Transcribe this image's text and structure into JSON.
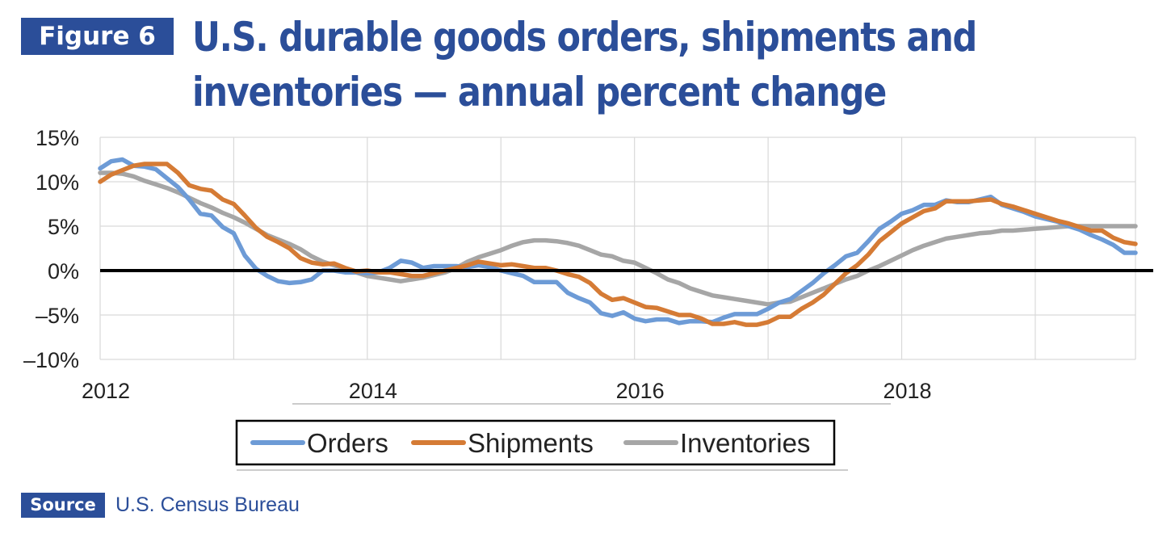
{
  "figure": {
    "badge": "Figure 6",
    "title_line1": "U.S. durable goods orders, shipments and",
    "title_line2": "inventories — annual percent change"
  },
  "source": {
    "badge": "Source",
    "text": "U.S. Census Bureau"
  },
  "colors": {
    "brand": "#2b4e99",
    "orders": "#6d9bd6",
    "shipments": "#d57b35",
    "inventories": "#a6a6a6"
  },
  "chart_data": {
    "type": "line",
    "title": "U.S. durable goods orders, shipments and inventories — annual percent change",
    "xlabel": "",
    "ylabel": "",
    "x_ticks": [
      "2012",
      "2014",
      "2016",
      "2018"
    ],
    "y_ticks": [
      "15%",
      "10%",
      "5%",
      "0%",
      "–5%",
      "–10%"
    ],
    "ylim": [
      -10,
      15
    ],
    "xlim": [
      2012.0,
      2019.75
    ],
    "grid": "vertical gridlines at each year; horizontal gridlines at each 5%",
    "legend_position": "bottom",
    "series": [
      {
        "name": "Orders",
        "points": [
          [
            2012.0,
            11.5
          ],
          [
            2012.083,
            12.3
          ],
          [
            2012.167,
            12.5
          ],
          [
            2012.25,
            11.8
          ],
          [
            2012.333,
            11.7
          ],
          [
            2012.417,
            11.4
          ],
          [
            2012.5,
            10.4
          ],
          [
            2012.583,
            9.4
          ],
          [
            2012.667,
            8.0
          ],
          [
            2012.75,
            6.4
          ],
          [
            2012.833,
            6.2
          ],
          [
            2012.917,
            4.9
          ],
          [
            2013.0,
            4.2
          ],
          [
            2013.083,
            1.7
          ],
          [
            2013.167,
            0.2
          ],
          [
            2013.25,
            -0.6
          ],
          [
            2013.333,
            -1.2
          ],
          [
            2013.417,
            -1.4
          ],
          [
            2013.5,
            -1.3
          ],
          [
            2013.583,
            -1.0
          ],
          [
            2013.667,
            0.0
          ],
          [
            2013.75,
            0.0
          ],
          [
            2013.833,
            -0.2
          ],
          [
            2013.917,
            -0.2
          ],
          [
            2014.0,
            -0.3
          ],
          [
            2014.083,
            -0.2
          ],
          [
            2014.167,
            0.3
          ],
          [
            2014.25,
            1.1
          ],
          [
            2014.333,
            0.9
          ],
          [
            2014.417,
            0.3
          ],
          [
            2014.5,
            0.5
          ],
          [
            2014.583,
            0.5
          ],
          [
            2014.667,
            0.5
          ],
          [
            2014.75,
            0.4
          ],
          [
            2014.833,
            0.6
          ],
          [
            2014.917,
            0.4
          ],
          [
            2015.0,
            0.0
          ],
          [
            2015.083,
            -0.3
          ],
          [
            2015.167,
            -0.6
          ],
          [
            2015.25,
            -1.3
          ],
          [
            2015.333,
            -1.3
          ],
          [
            2015.417,
            -1.3
          ],
          [
            2015.5,
            -2.5
          ],
          [
            2015.583,
            -3.1
          ],
          [
            2015.667,
            -3.6
          ],
          [
            2015.75,
            -4.8
          ],
          [
            2015.833,
            -5.1
          ],
          [
            2015.917,
            -4.7
          ],
          [
            2016.0,
            -5.4
          ],
          [
            2016.083,
            -5.7
          ],
          [
            2016.167,
            -5.5
          ],
          [
            2016.25,
            -5.5
          ],
          [
            2016.333,
            -5.9
          ],
          [
            2016.417,
            -5.7
          ],
          [
            2016.5,
            -5.7
          ],
          [
            2016.583,
            -5.8
          ],
          [
            2016.667,
            -5.3
          ],
          [
            2016.75,
            -4.9
          ],
          [
            2016.833,
            -4.9
          ],
          [
            2016.917,
            -4.9
          ],
          [
            2017.0,
            -4.3
          ],
          [
            2017.083,
            -3.6
          ],
          [
            2017.167,
            -3.2
          ],
          [
            2017.25,
            -2.3
          ],
          [
            2017.333,
            -1.4
          ],
          [
            2017.417,
            -0.3
          ],
          [
            2017.5,
            0.6
          ],
          [
            2017.583,
            1.6
          ],
          [
            2017.667,
            2.0
          ],
          [
            2017.75,
            3.3
          ],
          [
            2017.833,
            4.7
          ],
          [
            2017.917,
            5.5
          ],
          [
            2018.0,
            6.4
          ],
          [
            2018.083,
            6.8
          ],
          [
            2018.167,
            7.4
          ],
          [
            2018.25,
            7.4
          ],
          [
            2018.333,
            7.9
          ],
          [
            2018.417,
            7.7
          ],
          [
            2018.5,
            7.7
          ],
          [
            2018.583,
            8.0
          ],
          [
            2018.667,
            8.3
          ],
          [
            2018.75,
            7.4
          ],
          [
            2018.833,
            7.0
          ],
          [
            2018.917,
            6.6
          ],
          [
            2019.0,
            6.1
          ],
          [
            2019.083,
            5.8
          ],
          [
            2019.167,
            5.5
          ],
          [
            2019.25,
            5.0
          ],
          [
            2019.333,
            4.6
          ],
          [
            2019.417,
            4.0
          ],
          [
            2019.5,
            3.5
          ],
          [
            2019.583,
            2.9
          ],
          [
            2019.667,
            2.0
          ],
          [
            2019.75,
            2.0
          ]
        ]
      },
      {
        "name": "Shipments",
        "points": [
          [
            2012.0,
            10.0
          ],
          [
            2012.083,
            10.8
          ],
          [
            2012.167,
            11.3
          ],
          [
            2012.25,
            11.8
          ],
          [
            2012.333,
            12.0
          ],
          [
            2012.417,
            12.0
          ],
          [
            2012.5,
            12.0
          ],
          [
            2012.583,
            11.0
          ],
          [
            2012.667,
            9.6
          ],
          [
            2012.75,
            9.2
          ],
          [
            2012.833,
            9.0
          ],
          [
            2012.917,
            8.0
          ],
          [
            2013.0,
            7.5
          ],
          [
            2013.083,
            6.2
          ],
          [
            2013.167,
            4.8
          ],
          [
            2013.25,
            3.8
          ],
          [
            2013.333,
            3.2
          ],
          [
            2013.417,
            2.5
          ],
          [
            2013.5,
            1.4
          ],
          [
            2013.583,
            0.9
          ],
          [
            2013.667,
            0.7
          ],
          [
            2013.75,
            0.8
          ],
          [
            2013.833,
            0.3
          ],
          [
            2013.917,
            -0.1
          ],
          [
            2014.0,
            0.0
          ],
          [
            2014.083,
            -0.2
          ],
          [
            2014.167,
            -0.2
          ],
          [
            2014.25,
            -0.4
          ],
          [
            2014.333,
            -0.6
          ],
          [
            2014.417,
            -0.6
          ],
          [
            2014.5,
            -0.3
          ],
          [
            2014.583,
            0.0
          ],
          [
            2014.667,
            0.3
          ],
          [
            2014.75,
            0.6
          ],
          [
            2014.833,
            1.0
          ],
          [
            2014.917,
            0.8
          ],
          [
            2015.0,
            0.6
          ],
          [
            2015.083,
            0.7
          ],
          [
            2015.167,
            0.5
          ],
          [
            2015.25,
            0.3
          ],
          [
            2015.333,
            0.3
          ],
          [
            2015.417,
            0.0
          ],
          [
            2015.5,
            -0.4
          ],
          [
            2015.583,
            -0.7
          ],
          [
            2015.667,
            -1.4
          ],
          [
            2015.75,
            -2.6
          ],
          [
            2015.833,
            -3.3
          ],
          [
            2015.917,
            -3.1
          ],
          [
            2016.0,
            -3.6
          ],
          [
            2016.083,
            -4.1
          ],
          [
            2016.167,
            -4.2
          ],
          [
            2016.25,
            -4.6
          ],
          [
            2016.333,
            -5.0
          ],
          [
            2016.417,
            -5.0
          ],
          [
            2016.5,
            -5.4
          ],
          [
            2016.583,
            -6.0
          ],
          [
            2016.667,
            -6.0
          ],
          [
            2016.75,
            -5.8
          ],
          [
            2016.833,
            -6.1
          ],
          [
            2016.917,
            -6.1
          ],
          [
            2017.0,
            -5.8
          ],
          [
            2017.083,
            -5.2
          ],
          [
            2017.167,
            -5.2
          ],
          [
            2017.25,
            -4.3
          ],
          [
            2017.333,
            -3.6
          ],
          [
            2017.417,
            -2.7
          ],
          [
            2017.5,
            -1.5
          ],
          [
            2017.583,
            -0.3
          ],
          [
            2017.667,
            0.6
          ],
          [
            2017.75,
            1.8
          ],
          [
            2017.833,
            3.3
          ],
          [
            2017.917,
            4.3
          ],
          [
            2018.0,
            5.3
          ],
          [
            2018.083,
            6.0
          ],
          [
            2018.167,
            6.7
          ],
          [
            2018.25,
            7.0
          ],
          [
            2018.333,
            7.8
          ],
          [
            2018.417,
            7.8
          ],
          [
            2018.5,
            7.8
          ],
          [
            2018.583,
            7.9
          ],
          [
            2018.667,
            8.0
          ],
          [
            2018.75,
            7.5
          ],
          [
            2018.833,
            7.2
          ],
          [
            2018.917,
            6.8
          ],
          [
            2019.0,
            6.4
          ],
          [
            2019.083,
            6.0
          ],
          [
            2019.167,
            5.6
          ],
          [
            2019.25,
            5.3
          ],
          [
            2019.333,
            4.9
          ],
          [
            2019.417,
            4.5
          ],
          [
            2019.5,
            4.5
          ],
          [
            2019.583,
            3.7
          ],
          [
            2019.667,
            3.2
          ],
          [
            2019.75,
            3.0
          ]
        ]
      },
      {
        "name": "Inventories",
        "points": [
          [
            2012.0,
            11.0
          ],
          [
            2012.083,
            11.0
          ],
          [
            2012.167,
            10.9
          ],
          [
            2012.25,
            10.6
          ],
          [
            2012.333,
            10.1
          ],
          [
            2012.417,
            9.7
          ],
          [
            2012.5,
            9.3
          ],
          [
            2012.583,
            8.8
          ],
          [
            2012.667,
            8.2
          ],
          [
            2012.75,
            7.6
          ],
          [
            2012.833,
            7.1
          ],
          [
            2012.917,
            6.5
          ],
          [
            2013.0,
            6.0
          ],
          [
            2013.083,
            5.4
          ],
          [
            2013.167,
            4.7
          ],
          [
            2013.25,
            4.0
          ],
          [
            2013.333,
            3.5
          ],
          [
            2013.417,
            3.0
          ],
          [
            2013.5,
            2.4
          ],
          [
            2013.583,
            1.6
          ],
          [
            2013.667,
            1.0
          ],
          [
            2013.75,
            0.6
          ],
          [
            2013.833,
            0.2
          ],
          [
            2013.917,
            -0.2
          ],
          [
            2014.0,
            -0.6
          ],
          [
            2014.083,
            -0.8
          ],
          [
            2014.167,
            -1.0
          ],
          [
            2014.25,
            -1.2
          ],
          [
            2014.333,
            -1.0
          ],
          [
            2014.417,
            -0.8
          ],
          [
            2014.5,
            -0.5
          ],
          [
            2014.583,
            -0.2
          ],
          [
            2014.667,
            0.3
          ],
          [
            2014.75,
            1.0
          ],
          [
            2014.833,
            1.5
          ],
          [
            2014.917,
            1.9
          ],
          [
            2015.0,
            2.3
          ],
          [
            2015.083,
            2.8
          ],
          [
            2015.167,
            3.2
          ],
          [
            2015.25,
            3.4
          ],
          [
            2015.333,
            3.4
          ],
          [
            2015.417,
            3.3
          ],
          [
            2015.5,
            3.1
          ],
          [
            2015.583,
            2.8
          ],
          [
            2015.667,
            2.3
          ],
          [
            2015.75,
            1.8
          ],
          [
            2015.833,
            1.6
          ],
          [
            2015.917,
            1.1
          ],
          [
            2016.0,
            0.9
          ],
          [
            2016.083,
            0.3
          ],
          [
            2016.167,
            -0.3
          ],
          [
            2016.25,
            -1.0
          ],
          [
            2016.333,
            -1.4
          ],
          [
            2016.417,
            -2.0
          ],
          [
            2016.5,
            -2.4
          ],
          [
            2016.583,
            -2.8
          ],
          [
            2016.667,
            -3.0
          ],
          [
            2016.75,
            -3.2
          ],
          [
            2016.833,
            -3.4
          ],
          [
            2016.917,
            -3.6
          ],
          [
            2017.0,
            -3.8
          ],
          [
            2017.083,
            -3.6
          ],
          [
            2017.167,
            -3.5
          ],
          [
            2017.25,
            -3.0
          ],
          [
            2017.333,
            -2.5
          ],
          [
            2017.417,
            -2.0
          ],
          [
            2017.5,
            -1.5
          ],
          [
            2017.583,
            -1.0
          ],
          [
            2017.667,
            -0.6
          ],
          [
            2017.75,
            0.0
          ],
          [
            2017.833,
            0.5
          ],
          [
            2017.917,
            1.1
          ],
          [
            2018.0,
            1.7
          ],
          [
            2018.083,
            2.3
          ],
          [
            2018.167,
            2.8
          ],
          [
            2018.25,
            3.2
          ],
          [
            2018.333,
            3.6
          ],
          [
            2018.417,
            3.8
          ],
          [
            2018.5,
            4.0
          ],
          [
            2018.583,
            4.2
          ],
          [
            2018.667,
            4.3
          ],
          [
            2018.75,
            4.5
          ],
          [
            2018.833,
            4.5
          ],
          [
            2018.917,
            4.6
          ],
          [
            2019.0,
            4.7
          ],
          [
            2019.083,
            4.8
          ],
          [
            2019.167,
            4.9
          ],
          [
            2019.25,
            5.0
          ],
          [
            2019.333,
            5.0
          ],
          [
            2019.417,
            5.0
          ],
          [
            2019.5,
            5.0
          ],
          [
            2019.583,
            5.0
          ],
          [
            2019.667,
            5.0
          ],
          [
            2019.75,
            5.0
          ]
        ]
      }
    ]
  }
}
